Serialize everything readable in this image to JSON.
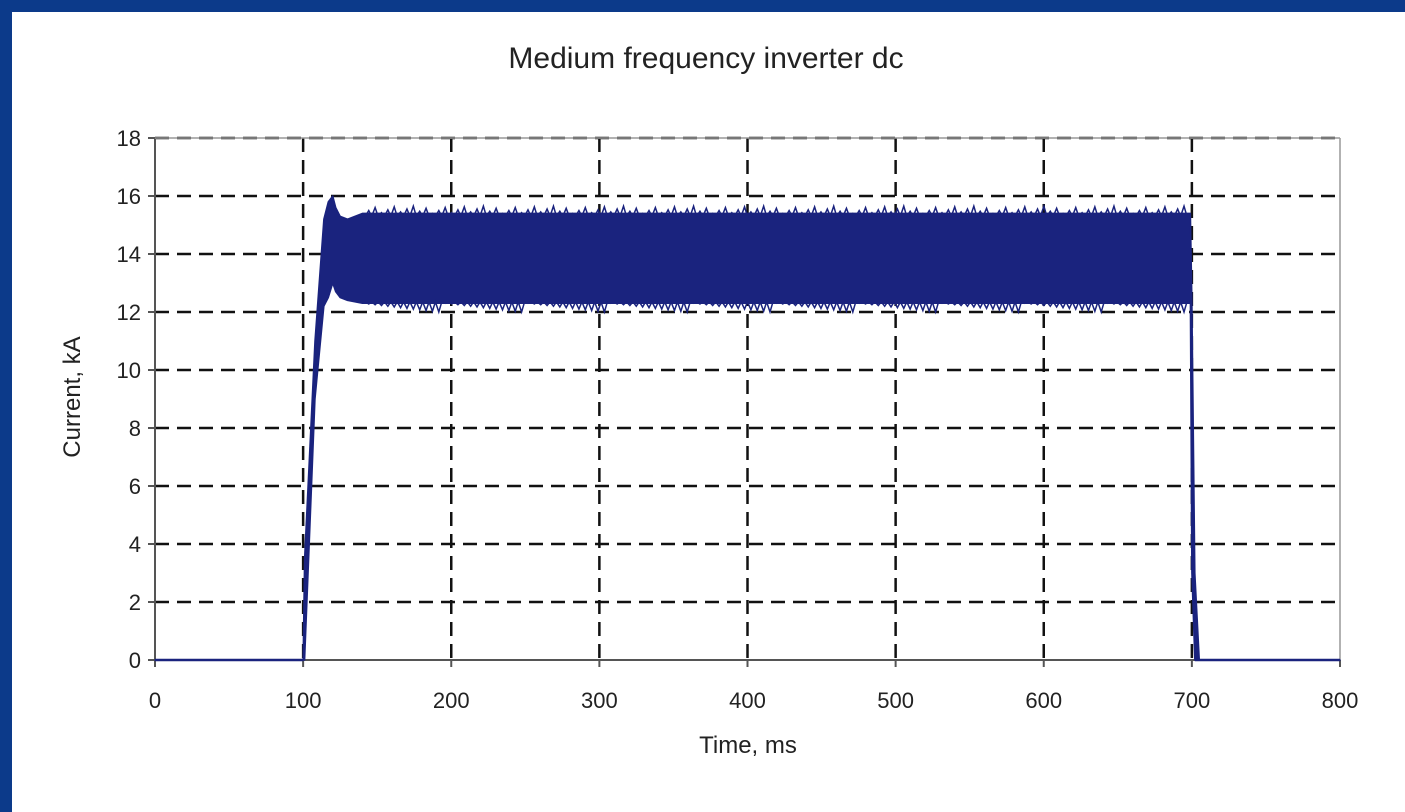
{
  "chart_data": {
    "type": "line",
    "title": "Medium frequency inverter dc",
    "xlabel": "Time, ms",
    "ylabel": "Current, kA",
    "xlim": [
      0,
      800
    ],
    "ylim": [
      0,
      18
    ],
    "xticks": [
      0,
      100,
      200,
      300,
      400,
      500,
      600,
      700,
      800
    ],
    "yticks": [
      0,
      2,
      4,
      6,
      8,
      10,
      12,
      14,
      16,
      18
    ],
    "grid": true,
    "legend": "none",
    "series": [
      {
        "color": "#1a237e",
        "x": [
          0,
          100,
          101,
          108,
          114,
          117,
          120,
          122,
          125,
          130,
          140,
          150,
          200,
          300,
          400,
          500,
          600,
          690,
          699,
          700,
          702,
          705,
          800
        ],
        "y_upper": [
          0,
          0,
          3.5,
          11,
          15.2,
          15.8,
          16,
          15.6,
          15.3,
          15.2,
          15.4,
          15.4,
          15.4,
          15.4,
          15.4,
          15.4,
          15.4,
          15.4,
          15.4,
          12.4,
          3,
          0,
          0
        ],
        "y_lower": [
          0,
          0,
          0,
          9,
          12.2,
          12.5,
          13,
          12.7,
          12.5,
          12.4,
          12.3,
          12.3,
          12.3,
          12.3,
          12.3,
          12.3,
          12.3,
          12.3,
          12.3,
          3,
          0,
          0,
          0
        ]
      }
    ],
    "colors": {
      "grid": "#111111",
      "axis": "#555555",
      "series": "#1a237e",
      "border": "#0c3a8a"
    }
  }
}
